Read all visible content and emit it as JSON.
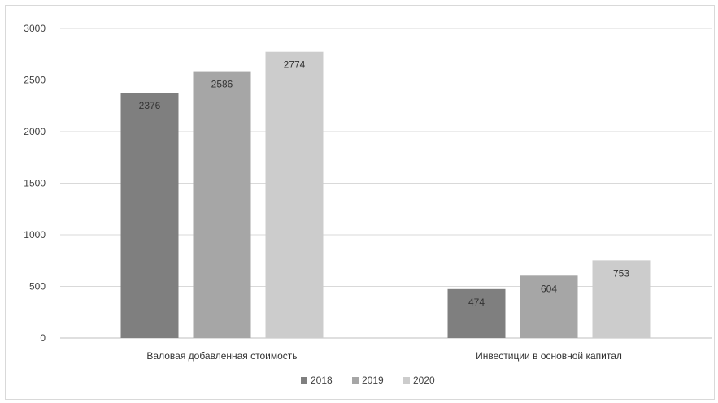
{
  "chart_data": {
    "type": "bar",
    "categories": [
      "Валовая добавленная стоимость",
      "Инвестиции в основной капитал"
    ],
    "series": [
      {
        "name": "2018",
        "values": [
          2376,
          474
        ],
        "color": "#7f7f7f"
      },
      {
        "name": "2019",
        "values": [
          2586,
          604
        ],
        "color": "#a6a6a6"
      },
      {
        "name": "2020",
        "values": [
          2774,
          753
        ],
        "color": "#cccccc"
      }
    ],
    "ylim": [
      0,
      3000
    ],
    "yticks": [
      0,
      500,
      1000,
      1500,
      2000,
      2500,
      3000
    ],
    "grid": true,
    "legend_position": "bottom"
  }
}
